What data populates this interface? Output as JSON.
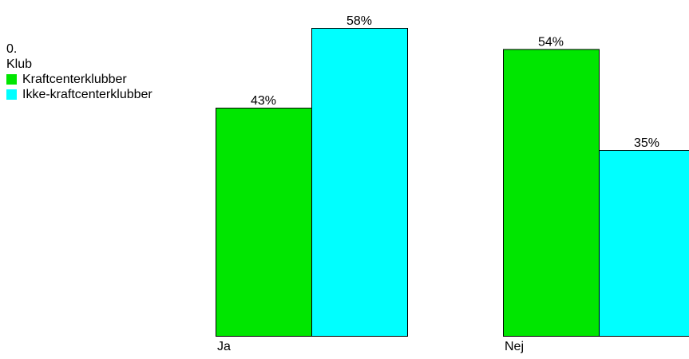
{
  "chart_data": {
    "type": "bar",
    "categories": [
      "Ja",
      "Nej"
    ],
    "series": [
      {
        "name": "Kraftcenterklubber",
        "values": [
          43,
          54
        ],
        "labels": [
          "43%",
          "54%"
        ]
      },
      {
        "name": "Ikke-kraftcenterklubber",
        "values": [
          58,
          35
        ],
        "labels": [
          "58%",
          "35%"
        ]
      }
    ],
    "colors": [
      "#00e600",
      "#00ffff"
    ],
    "ylim": [
      0,
      58
    ],
    "grid": false,
    "legend": {
      "placement": "left",
      "line1": "0.",
      "line2": "Klub"
    }
  }
}
